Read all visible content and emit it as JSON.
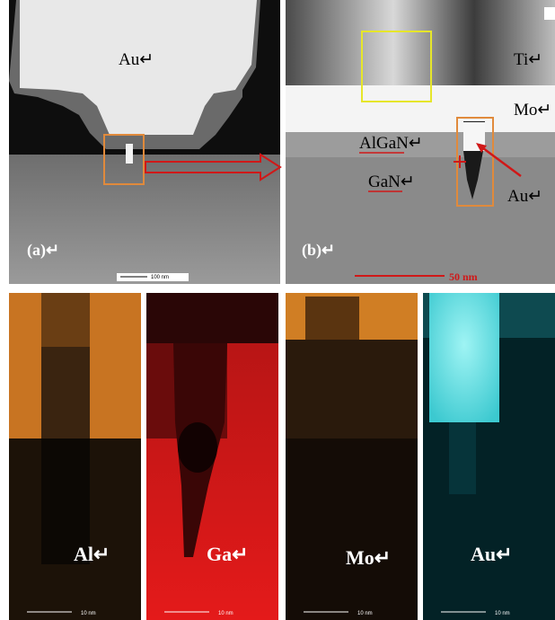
{
  "panel_a": {
    "label": "(a)↵",
    "material": "Au↵",
    "scale_bar": "100 nm"
  },
  "panel_b": {
    "label": "(b)↵",
    "layers": [
      "Ti↵",
      "Mo↵",
      "AlGaN↵",
      "GaN↵"
    ],
    "marker": "Au↵",
    "scale_bar": "50 nm"
  },
  "maps": [
    {
      "element": "Al↵",
      "scale_bar": "10 nm"
    },
    {
      "element": "Ga↵",
      "scale_bar": "10 nm"
    },
    {
      "element": "Mo↵",
      "scale_bar": "10 nm"
    },
    {
      "element": "Au↵",
      "scale_bar": "10 nm"
    }
  ]
}
